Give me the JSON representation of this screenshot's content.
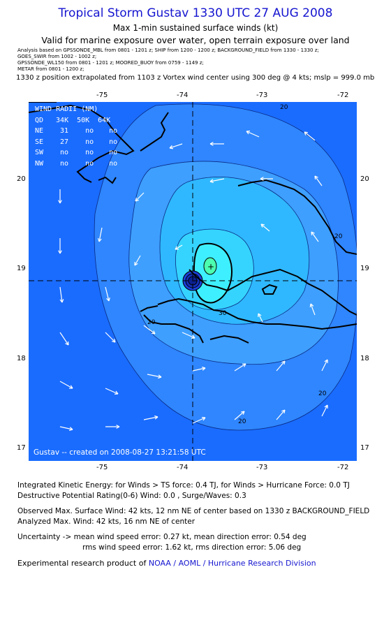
{
  "header": {
    "title": "Tropical Storm Gustav 1330 UTC 27 AUG 2008",
    "line1": "Max 1-min sustained surface winds (kt)",
    "line2": "Valid for marine exposure over water, open terrain exposure over land",
    "analysis_lines": [
      "Analysis based on  GPSSONDE_MBL from 0801 - 1201 z;  SHIP from 1200 - 1200 z;  BACKGROUND_FIELD from 1330 - 1330 z;",
      "GOES_SWIR from 1002 - 1002 z;",
      "GPSSONDE_WL150 from 0801 - 1201 z;   MOORED_BUOY from 0759 - 1149 z;",
      "METAR from 0801 - 1200 z;"
    ],
    "position_note": "1330 z position extrapolated from 1103 z Vortex wind center using 300 deg @ 4 kts; mslp = 999.0 mb"
  },
  "map": {
    "lon_ticks": [
      "-75",
      "-74",
      "-73",
      "-72"
    ],
    "lat_ticks": [
      "20",
      "19",
      "18",
      "17"
    ],
    "contour_labels": [
      "20",
      "20",
      "20",
      "20",
      "20",
      "30"
    ],
    "footer": "Gustav -- created on 2008-08-27  13:21:58 UTC",
    "colors": {
      "ocean": "#1a6cff",
      "ring10": "#2f86ff",
      "ring15": "#3e9fff",
      "ring20": "#2fb8ff",
      "ring30": "#35d4ff",
      "ring35": "#3ef0ff",
      "core": "#1a3fd8",
      "land": "#000000"
    }
  },
  "wind_radii": {
    "title": "WIND RADII (NM)",
    "header": [
      "QD",
      "34K",
      "50K",
      "64K"
    ],
    "rows": [
      [
        "NE",
        "31",
        "no",
        "no"
      ],
      [
        "SE",
        "27",
        "no",
        "no"
      ],
      [
        "SW",
        "no",
        "no",
        "no"
      ],
      [
        "NW",
        "no",
        "no",
        "no"
      ]
    ]
  },
  "stats": {
    "ike": "Integrated Kinetic Energy:  for Winds > TS force: 0.4 TJ,  for Winds > Hurricane Force: 0.0 TJ",
    "dpr": "Destructive Potential Rating(0-6)   Wind: 0.0 , Surge/Waves: 0.3",
    "obs_max": "Observed Max. Surface Wind: 42 kts, 12 nm NE of center based on 1330 z BACKGROUND_FIELD",
    "ana_max": "Analyzed Max. Wind: 42 kts, 16 nm NE of center",
    "unc1": "Uncertainty -> mean wind speed error: 0.27 kt,   mean direction error: 0.54 deg",
    "unc2": "rms wind speed error: 1.62 kt,   rms direction error: 5.06 deg",
    "credit_prefix": "Experimental research product of ",
    "credit_link": "NOAA / AOML / Hurricane Research Division"
  }
}
